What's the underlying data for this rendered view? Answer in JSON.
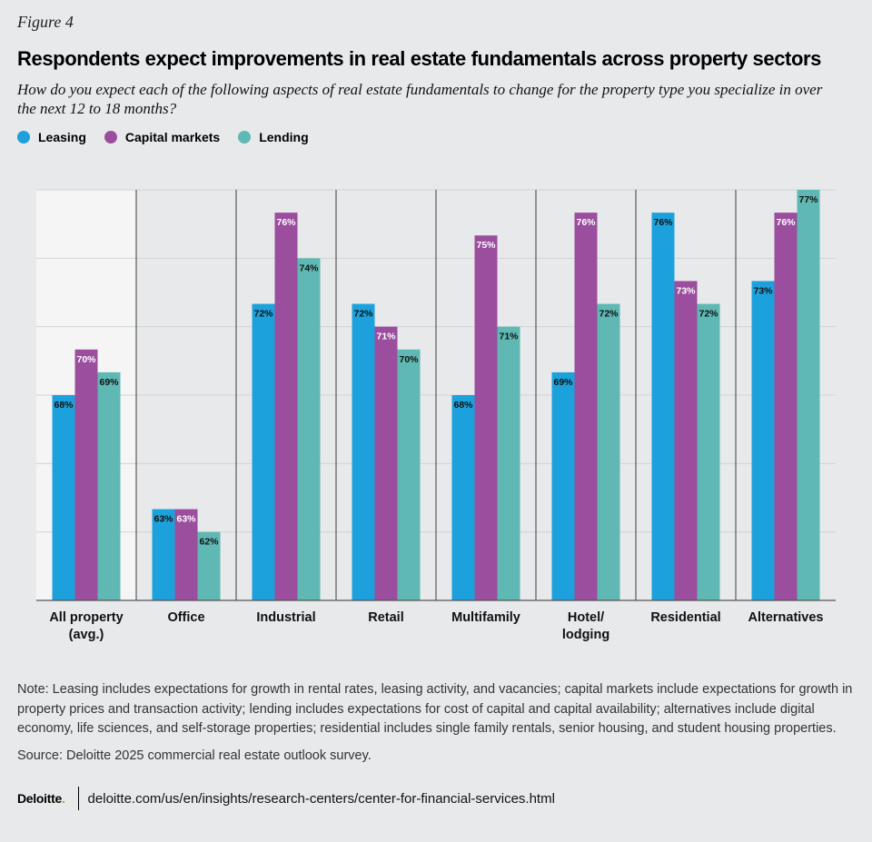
{
  "figure_label": "Figure 4",
  "title": "Respondents expect improvements in real estate fundamentals across property sectors",
  "subtitle": "How do you expect each of the following aspects of real estate fundamentals to change for the property type you specialize in over the next 12 to 18 months?",
  "legend": [
    {
      "label": "Leasing",
      "color": "#1da1dc"
    },
    {
      "label": "Capital markets",
      "color": "#9b4d9e"
    },
    {
      "label": "Lending",
      "color": "#5fb8b3"
    }
  ],
  "chart_data": {
    "type": "bar",
    "categories": [
      [
        "All property",
        "(avg.)"
      ],
      [
        "Office"
      ],
      [
        "Industrial"
      ],
      [
        "Retail"
      ],
      [
        "Multifamily"
      ],
      [
        "Hotel/",
        "lodging"
      ],
      [
        "Residential"
      ],
      [
        "Alternatives"
      ]
    ],
    "series": [
      {
        "name": "Leasing",
        "color": "#1da1dc",
        "values": [
          68,
          63,
          72,
          72,
          68,
          69,
          76,
          73
        ]
      },
      {
        "name": "Capital markets",
        "color": "#9b4d9e",
        "values": [
          70,
          63,
          76,
          71,
          75,
          76,
          73,
          76
        ]
      },
      {
        "name": "Lending",
        "color": "#5fb8b3",
        "values": [
          69,
          62,
          74,
          70,
          71,
          72,
          72,
          77
        ]
      }
    ],
    "value_suffix": "%",
    "ylim": [
      59,
      77
    ],
    "grid": true,
    "highlight_first_category": true,
    "legend_position": "top-left"
  },
  "note": "Note: Leasing includes expectations for growth in rental rates, leasing activity, and vacancies; capital markets include expectations for growth in property prices and transaction activity; lending includes expectations for cost of capital and capital availability; alternatives include digital economy, life sciences, and self-storage properties; residential includes single family rentals, senior housing, and student housing properties.",
  "source": "Source: Deloitte 2025 commercial real estate outlook survey.",
  "footer": {
    "brand": "Deloitte",
    "brand_dot": ".",
    "url": "deloitte.com/us/en/insights/research-centers/center-for-financial-services.html"
  }
}
